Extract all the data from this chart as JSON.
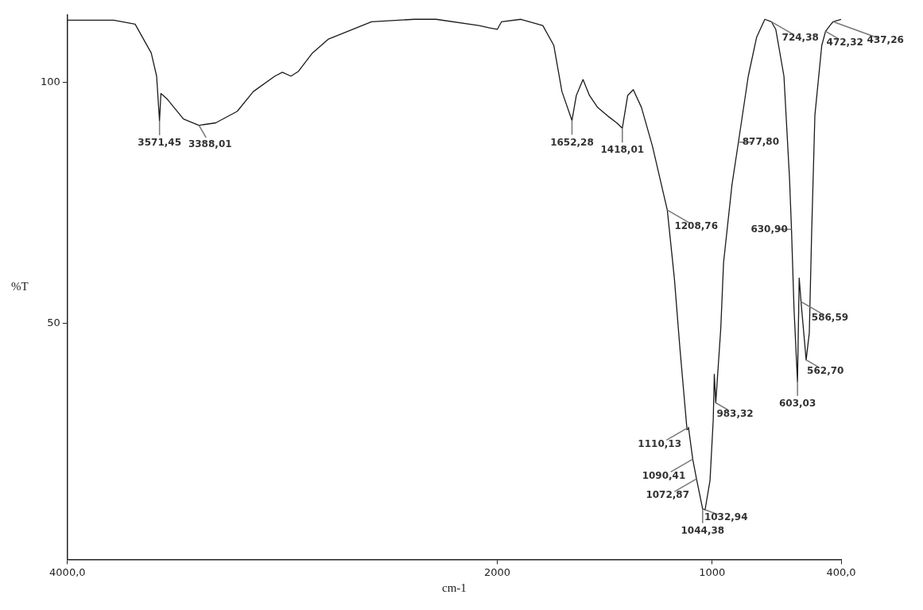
{
  "chart_data": {
    "type": "line",
    "xlabel": "cm-1",
    "ylabel": "%T",
    "xlim": [
      4000,
      400
    ],
    "ylim": [
      1,
      114
    ],
    "xticks": [
      {
        "value": 4000,
        "label": "4000,0"
      },
      2000,
      1000,
      {
        "value": 400,
        "label": "400,0"
      }
    ],
    "yticks": [
      50,
      100
    ],
    "grid": false,
    "legend": false,
    "marker": "none",
    "line_style": "solid",
    "series": [
      {
        "color": "#1a1a1a",
        "x": [
          4000,
          3785,
          3685,
          3610,
          3585,
          3571.45,
          3565,
          3535,
          3460,
          3388.01,
          3310,
          3210,
          3135,
          3035,
          3000,
          2960,
          2925,
          2860,
          2785,
          2585,
          2385,
          2285,
          2085,
          2035,
          2000,
          1980,
          1890,
          1788,
          1737,
          1699,
          1652.28,
          1632,
          1601,
          1571,
          1533,
          1482,
          1444,
          1418.01,
          1393,
          1367,
          1329,
          1278,
          1208.76,
          1176,
          1150,
          1117,
          1110.13,
          1090.41,
          1072.87,
          1044.38,
          1032.94,
          1010,
          995,
          990,
          983.32,
          960,
          947,
          908,
          877.8,
          832,
          793,
          755,
          724.38,
          704,
          666,
          640,
          630.9,
          619,
          603.03,
          595,
          586.59,
          562.7,
          548,
          537,
          522,
          490,
          472.32,
          452,
          437.26,
          400
        ],
        "values": [
          112.9,
          112.9,
          112.1,
          106.1,
          101.3,
          92,
          97.7,
          96.5,
          92.4,
          91.1,
          91.6,
          94,
          98.1,
          101.3,
          102.1,
          101.3,
          102.3,
          106.1,
          109,
          112.6,
          113.1,
          113.1,
          111.8,
          111.3,
          111,
          112.6,
          113.1,
          111.8,
          107.7,
          98.1,
          92.1,
          97.3,
          100.6,
          97.3,
          94.8,
          92.9,
          91.6,
          90.5,
          97.3,
          98.5,
          94.8,
          86.8,
          73.5,
          59.4,
          44.8,
          27.9,
          28.4,
          21.8,
          17.7,
          11.5,
          11.3,
          17.4,
          30,
          39.4,
          33.5,
          48.9,
          62.6,
          78.7,
          87.6,
          101.3,
          109.4,
          113.1,
          112.6,
          111,
          101.3,
          80,
          69.5,
          52.9,
          37.9,
          59.4,
          54.5,
          42.4,
          48,
          69,
          93.2,
          107.7,
          110.6,
          111.8,
          112.6,
          113.1
        ]
      }
    ],
    "annotations": [
      {
        "text": "3571,45",
        "x": 3571.45,
        "y": 92
      },
      {
        "text": "3388,01",
        "x": 3388.01,
        "y": 91.1
      },
      {
        "text": "1652,28",
        "x": 1652.28,
        "y": 92.1
      },
      {
        "text": "1418,01",
        "x": 1418.01,
        "y": 90.5
      },
      {
        "text": "1208,76",
        "x": 1208.76,
        "y": 73.5
      },
      {
        "text": "1110,13",
        "x": 1110.13,
        "y": 28.4
      },
      {
        "text": "1090,41",
        "x": 1090.41,
        "y": 21.8
      },
      {
        "text": "1072,87",
        "x": 1072.87,
        "y": 17.7
      },
      {
        "text": "1044,38",
        "x": 1044.38,
        "y": 11.5
      },
      {
        "text": "1032,94",
        "x": 1032.94,
        "y": 11.3
      },
      {
        "text": "983,32",
        "x": 983.32,
        "y": 33.5
      },
      {
        "text": "877,80",
        "x": 877.8,
        "y": 87.6
      },
      {
        "text": "724,38",
        "x": 724.38,
        "y": 112.6
      },
      {
        "text": "630,90",
        "x": 630.9,
        "y": 69.5
      },
      {
        "text": "603,03",
        "x": 603.03,
        "y": 37.9
      },
      {
        "text": "586,59",
        "x": 586.59,
        "y": 54.5
      },
      {
        "text": "562,70",
        "x": 562.7,
        "y": 42.4
      },
      {
        "text": "472,32",
        "x": 472.32,
        "y": 110.6
      },
      {
        "text": "437,26",
        "x": 437.26,
        "y": 112.6
      }
    ]
  }
}
